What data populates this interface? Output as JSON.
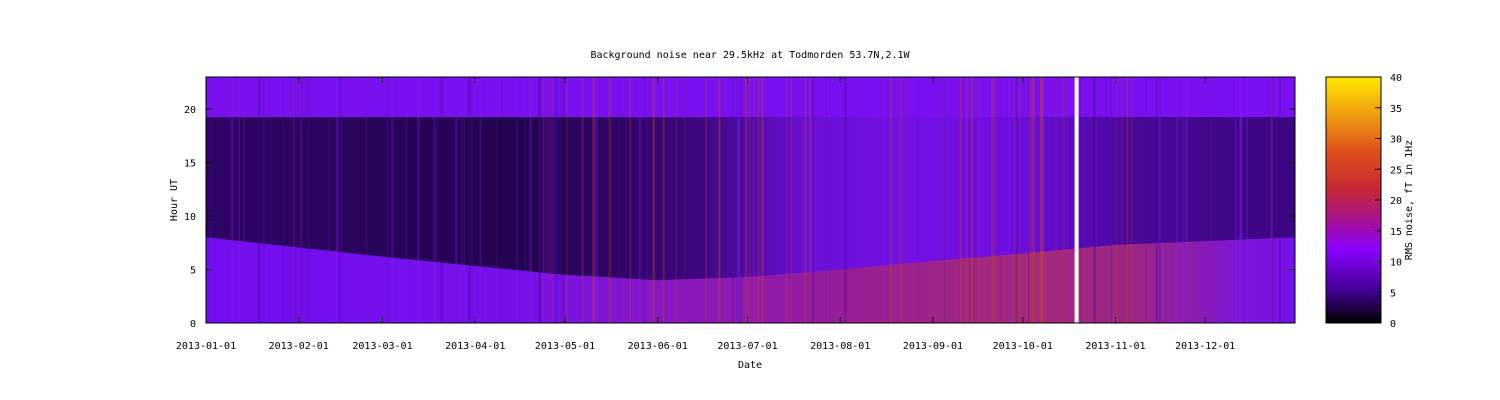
{
  "chart_data": {
    "type": "heatmap",
    "title": "Background noise near 29.5kHz at Todmorden 53.7N,2.1W",
    "xlabel": "Date",
    "ylabel": "Hour UT",
    "colorbar_label": "RMS noise, fT in 1Hz",
    "x_range": [
      "2013-01-01",
      "2013-12-31"
    ],
    "x_ticks": [
      "2013-01-01",
      "2013-02-01",
      "2013-03-01",
      "2013-04-01",
      "2013-05-01",
      "2013-06-01",
      "2013-07-01",
      "2013-08-01",
      "2013-09-01",
      "2013-10-01",
      "2013-11-01",
      "2013-12-01"
    ],
    "ylim": [
      0,
      23
    ],
    "y_ticks": [
      0,
      5,
      10,
      15,
      20
    ],
    "colorbar_range": [
      0,
      40
    ],
    "colorbar_ticks": [
      0,
      5,
      10,
      15,
      20,
      25,
      30,
      35,
      40
    ],
    "colormap": [
      "#000000",
      "#40008c",
      "#8a00ff",
      "#a81270",
      "#e0501c",
      "#ffe800"
    ],
    "data_gap": {
      "date": "2013-10-19",
      "hours": [
        0,
        23
      ]
    },
    "night_band_upper_hour": [
      {
        "date": "2013-01-01",
        "hour": 8
      },
      {
        "date": "2013-03-01",
        "hour": 6.2
      },
      {
        "date": "2013-05-01",
        "hour": 4.5
      },
      {
        "date": "2013-06-01",
        "hour": 4
      },
      {
        "date": "2013-07-01",
        "hour": 4.3
      },
      {
        "date": "2013-08-01",
        "hour": 5
      },
      {
        "date": "2013-09-01",
        "hour": 5.8
      },
      {
        "date": "2013-10-01",
        "hour": 6.5
      },
      {
        "date": "2013-11-01",
        "hour": 7.3
      },
      {
        "date": "2013-12-31",
        "hour": 8
      }
    ],
    "grid": false,
    "legend": "colorbar-right"
  }
}
